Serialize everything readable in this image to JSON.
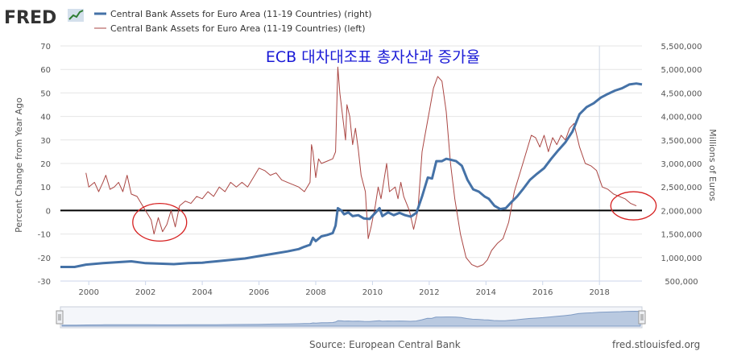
{
  "header": {
    "logo": "FRED",
    "logo_icon": "line-chart-icon"
  },
  "legend": [
    {
      "label": "Central Bank Assets for Euro Area (11-19 Countries) (right)",
      "color": "#4572A7"
    },
    {
      "label": "Central Bank Assets for Euro Area (11-19 Countries) (left)",
      "color": "#AA4643"
    }
  ],
  "overlay_title": "ECB 대차대조표 총자산과 증가율",
  "footer": {
    "source": "Source: European Central Bank",
    "site": "fred.stlouisfed.org"
  },
  "chart_data": {
    "type": "line",
    "x_ticks": [
      "2000",
      "2002",
      "2004",
      "2006",
      "2008",
      "2010",
      "2012",
      "2014",
      "2016",
      "2018"
    ],
    "xlim": [
      1999.0,
      2019.5
    ],
    "left_axis": {
      "label": "Percent Change from Year Ago",
      "ticks": [
        "-30",
        "-20",
        "-10",
        "0",
        "10",
        "20",
        "30",
        "40",
        "50",
        "60",
        "70"
      ],
      "ylim": [
        -30,
        70
      ]
    },
    "right_axis": {
      "label": "Millions of Euros",
      "ticks": [
        "500,000",
        "1,000,000",
        "1,500,000",
        "2,000,000",
        "2,500,000",
        "3,000,000",
        "3,500,000",
        "4,000,000",
        "4,500,000",
        "5,000,000",
        "5,500,000"
      ],
      "ylim": [
        500000,
        5500000
      ]
    },
    "series": [
      {
        "name": "Central Bank Assets for Euro Area (11-19 Countries) (left)",
        "axis": "left",
        "color": "#AA4643",
        "points": [
          [
            1999.9,
            16
          ],
          [
            2000.0,
            10
          ],
          [
            2000.2,
            12
          ],
          [
            2000.35,
            8
          ],
          [
            2000.5,
            12
          ],
          [
            2000.6,
            15
          ],
          [
            2000.75,
            9
          ],
          [
            2000.9,
            10
          ],
          [
            2001.05,
            12
          ],
          [
            2001.2,
            8
          ],
          [
            2001.35,
            15
          ],
          [
            2001.5,
            7
          ],
          [
            2001.7,
            6
          ],
          [
            2001.9,
            2
          ],
          [
            2002.1,
            -2
          ],
          [
            2002.2,
            -4
          ],
          [
            2002.3,
            -10
          ],
          [
            2002.45,
            -3
          ],
          [
            2002.6,
            -9
          ],
          [
            2002.75,
            -6
          ],
          [
            2002.9,
            0
          ],
          [
            2003.05,
            -7
          ],
          [
            2003.2,
            2
          ],
          [
            2003.4,
            4
          ],
          [
            2003.6,
            3
          ],
          [
            2003.8,
            6
          ],
          [
            2004.0,
            5
          ],
          [
            2004.2,
            8
          ],
          [
            2004.4,
            6
          ],
          [
            2004.6,
            10
          ],
          [
            2004.8,
            8
          ],
          [
            2005.0,
            12
          ],
          [
            2005.2,
            10
          ],
          [
            2005.4,
            12
          ],
          [
            2005.6,
            10
          ],
          [
            2005.8,
            14
          ],
          [
            2006.0,
            18
          ],
          [
            2006.2,
            17
          ],
          [
            2006.4,
            15
          ],
          [
            2006.6,
            16
          ],
          [
            2006.8,
            13
          ],
          [
            2007.0,
            12
          ],
          [
            2007.2,
            11
          ],
          [
            2007.4,
            10
          ],
          [
            2007.6,
            8
          ],
          [
            2007.8,
            12
          ],
          [
            2007.85,
            28
          ],
          [
            2007.9,
            25
          ],
          [
            2008.0,
            14
          ],
          [
            2008.1,
            22
          ],
          [
            2008.2,
            20
          ],
          [
            2008.4,
            21
          ],
          [
            2008.6,
            22
          ],
          [
            2008.7,
            25
          ],
          [
            2008.78,
            61
          ],
          [
            2008.85,
            50
          ],
          [
            2008.95,
            40
          ],
          [
            2009.05,
            30
          ],
          [
            2009.1,
            45
          ],
          [
            2009.2,
            40
          ],
          [
            2009.3,
            28
          ],
          [
            2009.4,
            35
          ],
          [
            2009.5,
            26
          ],
          [
            2009.6,
            15
          ],
          [
            2009.75,
            8
          ],
          [
            2009.85,
            -12
          ],
          [
            2009.95,
            -7
          ],
          [
            2010.1,
            2
          ],
          [
            2010.2,
            10
          ],
          [
            2010.3,
            5
          ],
          [
            2010.5,
            20
          ],
          [
            2010.6,
            8
          ],
          [
            2010.8,
            10
          ],
          [
            2010.9,
            5
          ],
          [
            2011.0,
            12
          ],
          [
            2011.1,
            6
          ],
          [
            2011.3,
            0
          ],
          [
            2011.45,
            -8
          ],
          [
            2011.6,
            0
          ],
          [
            2011.75,
            25
          ],
          [
            2011.85,
            32
          ],
          [
            2012.0,
            42
          ],
          [
            2012.15,
            52
          ],
          [
            2012.3,
            57
          ],
          [
            2012.45,
            55
          ],
          [
            2012.6,
            42
          ],
          [
            2012.75,
            20
          ],
          [
            2012.9,
            5
          ],
          [
            2013.1,
            -10
          ],
          [
            2013.3,
            -20
          ],
          [
            2013.5,
            -23
          ],
          [
            2013.7,
            -24
          ],
          [
            2013.9,
            -23
          ],
          [
            2014.05,
            -21
          ],
          [
            2014.2,
            -17
          ],
          [
            2014.4,
            -14
          ],
          [
            2014.6,
            -12
          ],
          [
            2014.8,
            -5
          ],
          [
            2015.0,
            8
          ],
          [
            2015.1,
            12
          ],
          [
            2015.3,
            20
          ],
          [
            2015.5,
            28
          ],
          [
            2015.6,
            32
          ],
          [
            2015.75,
            31
          ],
          [
            2015.9,
            27
          ],
          [
            2016.05,
            32
          ],
          [
            2016.2,
            25
          ],
          [
            2016.35,
            31
          ],
          [
            2016.5,
            28
          ],
          [
            2016.65,
            32
          ],
          [
            2016.8,
            30
          ],
          [
            2016.95,
            35
          ],
          [
            2017.1,
            37
          ],
          [
            2017.3,
            27
          ],
          [
            2017.5,
            20
          ],
          [
            2017.7,
            19
          ],
          [
            2017.9,
            17
          ],
          [
            2018.1,
            10
          ],
          [
            2018.3,
            9
          ],
          [
            2018.5,
            7
          ],
          [
            2018.7,
            6
          ],
          [
            2018.9,
            5
          ],
          [
            2019.1,
            3
          ],
          [
            2019.3,
            2
          ]
        ]
      },
      {
        "name": "Central Bank Assets for Euro Area (11-19 Countries) (right)",
        "axis": "right",
        "color": "#4572A7",
        "points": [
          [
            1999.0,
            800000
          ],
          [
            1999.5,
            800000
          ],
          [
            1999.9,
            850000
          ],
          [
            2000.5,
            880000
          ],
          [
            2001.0,
            900000
          ],
          [
            2001.5,
            920000
          ],
          [
            2002.0,
            880000
          ],
          [
            2002.5,
            870000
          ],
          [
            2003.0,
            860000
          ],
          [
            2003.5,
            880000
          ],
          [
            2004.0,
            890000
          ],
          [
            2004.5,
            920000
          ],
          [
            2005.0,
            950000
          ],
          [
            2005.5,
            980000
          ],
          [
            2006.0,
            1030000
          ],
          [
            2006.5,
            1080000
          ],
          [
            2007.0,
            1130000
          ],
          [
            2007.4,
            1180000
          ],
          [
            2007.6,
            1230000
          ],
          [
            2007.8,
            1270000
          ],
          [
            2007.9,
            1420000
          ],
          [
            2008.0,
            1350000
          ],
          [
            2008.2,
            1450000
          ],
          [
            2008.4,
            1480000
          ],
          [
            2008.6,
            1520000
          ],
          [
            2008.7,
            1680000
          ],
          [
            2008.78,
            2050000
          ],
          [
            2008.9,
            2000000
          ],
          [
            2009.0,
            1920000
          ],
          [
            2009.15,
            1960000
          ],
          [
            2009.3,
            1880000
          ],
          [
            2009.5,
            1900000
          ],
          [
            2009.7,
            1830000
          ],
          [
            2009.9,
            1820000
          ],
          [
            2010.1,
            1950000
          ],
          [
            2010.25,
            2050000
          ],
          [
            2010.35,
            1880000
          ],
          [
            2010.55,
            1960000
          ],
          [
            2010.75,
            1900000
          ],
          [
            2010.95,
            1950000
          ],
          [
            2011.15,
            1900000
          ],
          [
            2011.35,
            1870000
          ],
          [
            2011.55,
            1950000
          ],
          [
            2011.75,
            2300000
          ],
          [
            2011.95,
            2700000
          ],
          [
            2012.1,
            2680000
          ],
          [
            2012.25,
            3050000
          ],
          [
            2012.45,
            3050000
          ],
          [
            2012.6,
            3100000
          ],
          [
            2012.75,
            3080000
          ],
          [
            2012.95,
            3050000
          ],
          [
            2013.15,
            2950000
          ],
          [
            2013.35,
            2650000
          ],
          [
            2013.55,
            2450000
          ],
          [
            2013.75,
            2400000
          ],
          [
            2013.95,
            2300000
          ],
          [
            2014.1,
            2250000
          ],
          [
            2014.3,
            2100000
          ],
          [
            2014.5,
            2030000
          ],
          [
            2014.7,
            2050000
          ],
          [
            2014.9,
            2180000
          ],
          [
            2015.1,
            2300000
          ],
          [
            2015.3,
            2450000
          ],
          [
            2015.55,
            2650000
          ],
          [
            2015.8,
            2780000
          ],
          [
            2016.05,
            2900000
          ],
          [
            2016.3,
            3100000
          ],
          [
            2016.55,
            3280000
          ],
          [
            2016.8,
            3450000
          ],
          [
            2017.05,
            3680000
          ],
          [
            2017.3,
            4050000
          ],
          [
            2017.55,
            4200000
          ],
          [
            2017.8,
            4280000
          ],
          [
            2018.05,
            4400000
          ],
          [
            2018.3,
            4480000
          ],
          [
            2018.55,
            4550000
          ],
          [
            2018.8,
            4600000
          ],
          [
            2019.05,
            4680000
          ],
          [
            2019.3,
            4700000
          ],
          [
            2019.5,
            4680000
          ]
        ]
      }
    ],
    "zero_line": 0,
    "annotations": [
      {
        "type": "ellipse",
        "cx": 2002.5,
        "cy": -5,
        "rx_years": 0.95,
        "ry_units": 8
      },
      {
        "type": "ellipse",
        "cx": 2019.2,
        "cy": 2,
        "rx_years": 0.8,
        "ry_units": 6
      }
    ]
  }
}
